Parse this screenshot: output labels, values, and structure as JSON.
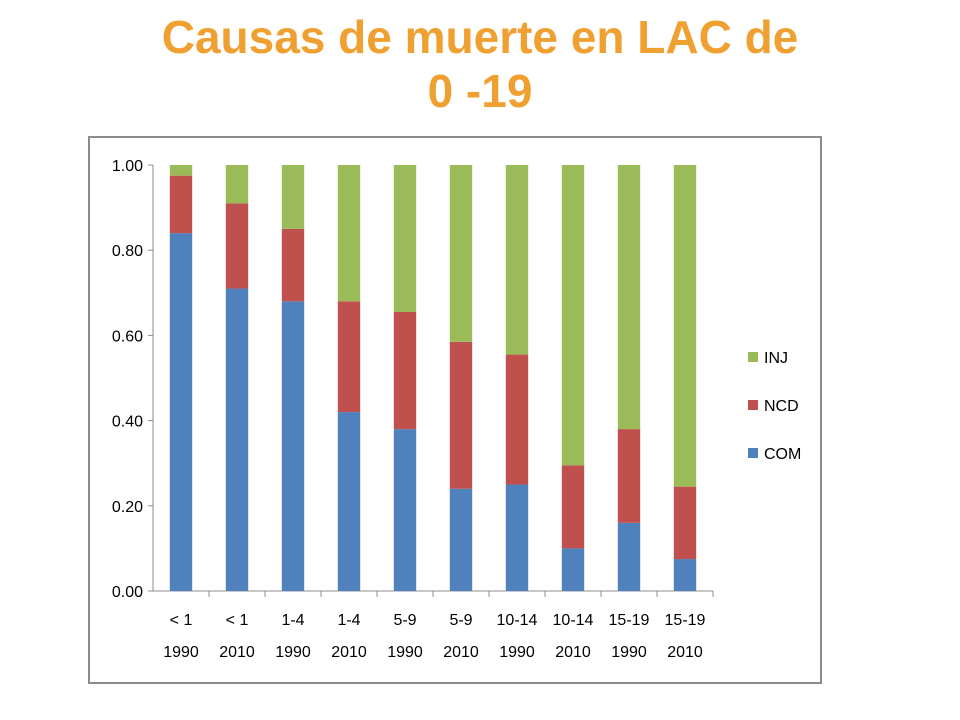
{
  "title": {
    "line1": "Causas de muerte  en LAC   de",
    "line2": "0 -19"
  },
  "colors": {
    "title": "#F0A030",
    "COM": "#4F81BD",
    "NCD": "#C0504D",
    "INJ": "#9BBB59"
  },
  "chart_data": {
    "type": "bar",
    "stacked": true,
    "categories": [
      [
        "< 1",
        "1990"
      ],
      [
        "< 1",
        "2010"
      ],
      [
        "1-4",
        "1990"
      ],
      [
        "1-4",
        "2010"
      ],
      [
        "5-9",
        "1990"
      ],
      [
        "5-9",
        "2010"
      ],
      [
        "10-14",
        "1990"
      ],
      [
        "10-14",
        "2010"
      ],
      [
        "15-19",
        "1990"
      ],
      [
        "15-19",
        "2010"
      ]
    ],
    "series": [
      {
        "name": "COM",
        "color": "#4F81BD",
        "values": [
          0.84,
          0.71,
          0.68,
          0.42,
          0.38,
          0.24,
          0.25,
          0.1,
          0.16,
          0.075
        ]
      },
      {
        "name": "NCD",
        "color": "#C0504D",
        "values": [
          0.135,
          0.2,
          0.17,
          0.26,
          0.275,
          0.345,
          0.305,
          0.195,
          0.22,
          0.17
        ]
      },
      {
        "name": "INJ",
        "color": "#9BBB59",
        "values": [
          0.025,
          0.09,
          0.15,
          0.32,
          0.345,
          0.415,
          0.445,
          0.705,
          0.62,
          0.755
        ]
      }
    ],
    "y_ticks": [
      "0.00",
      "0.20",
      "0.40",
      "0.60",
      "0.80",
      "1.00"
    ],
    "ylim": [
      0,
      1
    ],
    "legend": [
      "INJ",
      "NCD",
      "COM"
    ],
    "legend_position": "right",
    "grid": false
  }
}
